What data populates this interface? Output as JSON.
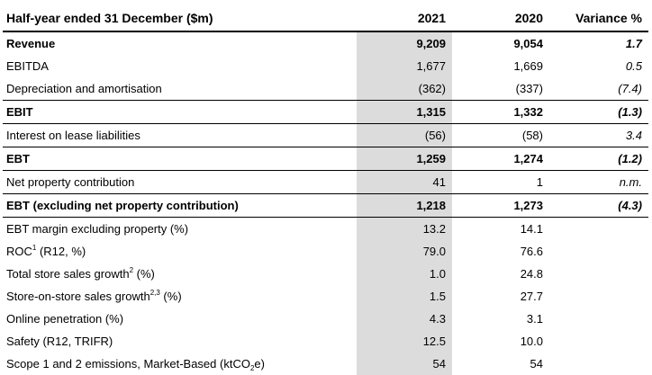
{
  "header": {
    "label": "Half-year ended 31 December ($m)",
    "col_2021": "2021",
    "col_2020": "2020",
    "col_variance": "Variance %"
  },
  "rows": [
    {
      "label": "Revenue",
      "v2021": "9,209",
      "v2020": "9,054",
      "variance": "1.7",
      "bold": true,
      "sep": false
    },
    {
      "label": "EBITDA",
      "v2021": "1,677",
      "v2020": "1,669",
      "variance": "0.5",
      "bold": false,
      "sep": false
    },
    {
      "label": "Depreciation and amortisation",
      "v2021": "(362)",
      "v2020": "(337)",
      "variance": "(7.4)",
      "bold": false,
      "sep": false
    },
    {
      "label": "EBIT",
      "v2021": "1,315",
      "v2020": "1,332",
      "variance": "(1.3)",
      "bold": true,
      "sep": true
    },
    {
      "label": "Interest on lease liabilities",
      "v2021": "(56)",
      "v2020": "(58)",
      "variance": "3.4",
      "bold": false,
      "sep": true
    },
    {
      "label": "EBT",
      "v2021": "1,259",
      "v2020": "1,274",
      "variance": "(1.2)",
      "bold": true,
      "sep": true
    },
    {
      "label": "Net property contribution",
      "v2021": "41",
      "v2020": "1",
      "variance": "n.m.",
      "bold": false,
      "sep": true
    },
    {
      "label": "EBT (excluding net property contribution)",
      "v2021": "1,218",
      "v2020": "1,273",
      "variance": "(4.3)",
      "bold": true,
      "sep": true
    },
    {
      "label": "EBT margin excluding property (%)",
      "v2021": "13.2",
      "v2020": "14.1",
      "variance": "",
      "bold": false,
      "sep": true
    },
    {
      "label": "ROC",
      "sup": "1",
      "label_after": " (R12, %)",
      "v2021": "79.0",
      "v2020": "76.6",
      "variance": "",
      "bold": false,
      "sep": false
    },
    {
      "label": "Total store sales growth",
      "sup": "2",
      "label_after": " (%)",
      "v2021": "1.0",
      "v2020": "24.8",
      "variance": "",
      "bold": false,
      "sep": false
    },
    {
      "label": "Store-on-store sales growth",
      "sup": "2,3",
      "label_after": " (%)",
      "v2021": "1.5",
      "v2020": "27.7",
      "variance": "",
      "bold": false,
      "sep": false
    },
    {
      "label": "Online penetration (%)",
      "v2021": "4.3",
      "v2020": "3.1",
      "variance": "",
      "bold": false,
      "sep": false
    },
    {
      "label": "Safety (R12, TRIFR)",
      "v2021": "12.5",
      "v2020": "10.0",
      "variance": "",
      "bold": false,
      "sep": false
    },
    {
      "label": "Scope 1 and 2 emissions, Market-Based (ktCO",
      "sub": "2",
      "label_after": "e)",
      "v2021": "54",
      "v2020": "54",
      "variance": "",
      "bold": false,
      "sep": false
    }
  ]
}
